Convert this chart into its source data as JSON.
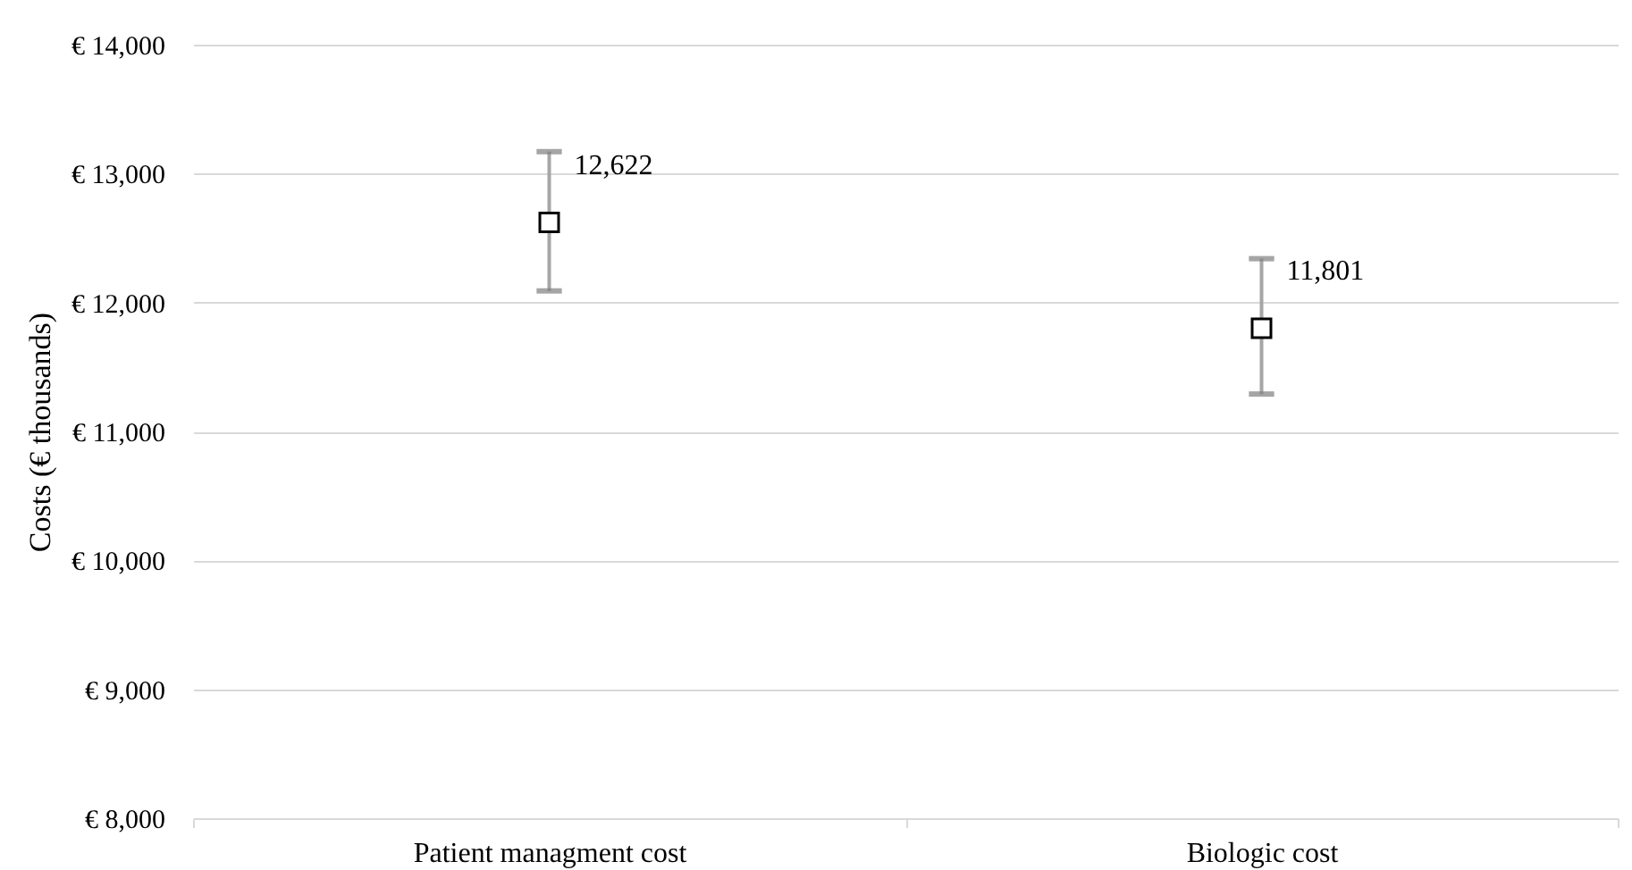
{
  "chart_data": {
    "type": "scatter",
    "ylabel": "Costs (€ thousands)",
    "categories": [
      "Patient managment cost",
      "Biologic cost"
    ],
    "series": [
      {
        "color": "#000000",
        "values": [
          12622,
          11801
        ],
        "value_labels": [
          "12,622",
          "11,801"
        ],
        "errors": [
          [
            12090,
            13170
          ],
          [
            11290,
            12340
          ]
        ]
      }
    ],
    "ylim": [
      8000,
      14000
    ],
    "yticks": [
      {
        "value": 8000,
        "label": "€ 8,000"
      },
      {
        "value": 9000,
        "label": "€ 9,000"
      },
      {
        "value": 10000,
        "label": "€ 10,000"
      },
      {
        "value": 11000,
        "label": "€ 11,000"
      },
      {
        "value": 12000,
        "label": "€ 12,000"
      },
      {
        "value": 13000,
        "label": "€ 13,000"
      },
      {
        "value": 14000,
        "label": "€ 14,000"
      }
    ],
    "grid": "y",
    "marker": "square"
  }
}
